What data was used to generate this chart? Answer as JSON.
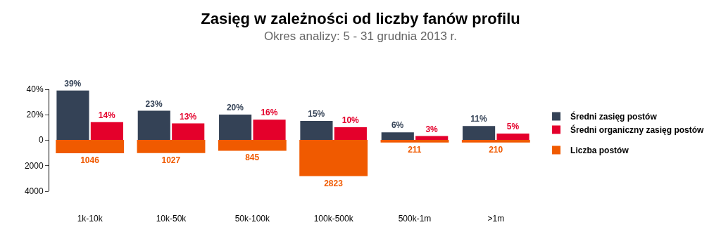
{
  "chart_data": [
    {
      "type": "bar",
      "title": "Zasięg w zależności od liczby fanów profilu",
      "subtitle": "Okres analizy: 5 - 31 grudnia 2013 r.",
      "categories": [
        null,
        null,
        null,
        null,
        null,
        null
      ],
      "series": [
        {
          "name": "Średni zasięg postów",
          "color": "#344256",
          "values": [
            39,
            23,
            20,
            15,
            6,
            11
          ],
          "value_labels": [
            "39%",
            "23%",
            "20%",
            "15%",
            "6%",
            "11%"
          ]
        },
        {
          "name": "Średni organiczny zasięg postów",
          "color": "#e4002b",
          "values": [
            14,
            13,
            16,
            10,
            3,
            5
          ],
          "value_labels": [
            "14%",
            "13%",
            "16%",
            "10%",
            "3%",
            "5%"
          ]
        }
      ],
      "ylim": [
        0,
        40
      ],
      "yticks": [
        {
          "value": 0,
          "label": "0"
        },
        {
          "value": 20,
          "label": "20%"
        },
        {
          "value": 40,
          "label": "40%"
        }
      ],
      "tick_labels": "y",
      "grid": false,
      "legend": "right"
    },
    {
      "type": "bar",
      "categories": [
        "1k-10k",
        "10k-50k",
        "50k-100k",
        "100k-500k",
        "500k-1m",
        ">1m"
      ],
      "series": [
        {
          "name": "Liczba postów",
          "color": "#f05a00",
          "values": [
            1046,
            1027,
            845,
            2823,
            211,
            210
          ],
          "value_labels": [
            "1046",
            "1027",
            "845",
            "2823",
            "211",
            "210"
          ]
        }
      ],
      "ylim": [
        4000,
        0
      ],
      "yticks": [
        {
          "value": 0,
          "label": null
        },
        2000,
        4000
      ],
      "grid": false,
      "legend": "right"
    }
  ]
}
